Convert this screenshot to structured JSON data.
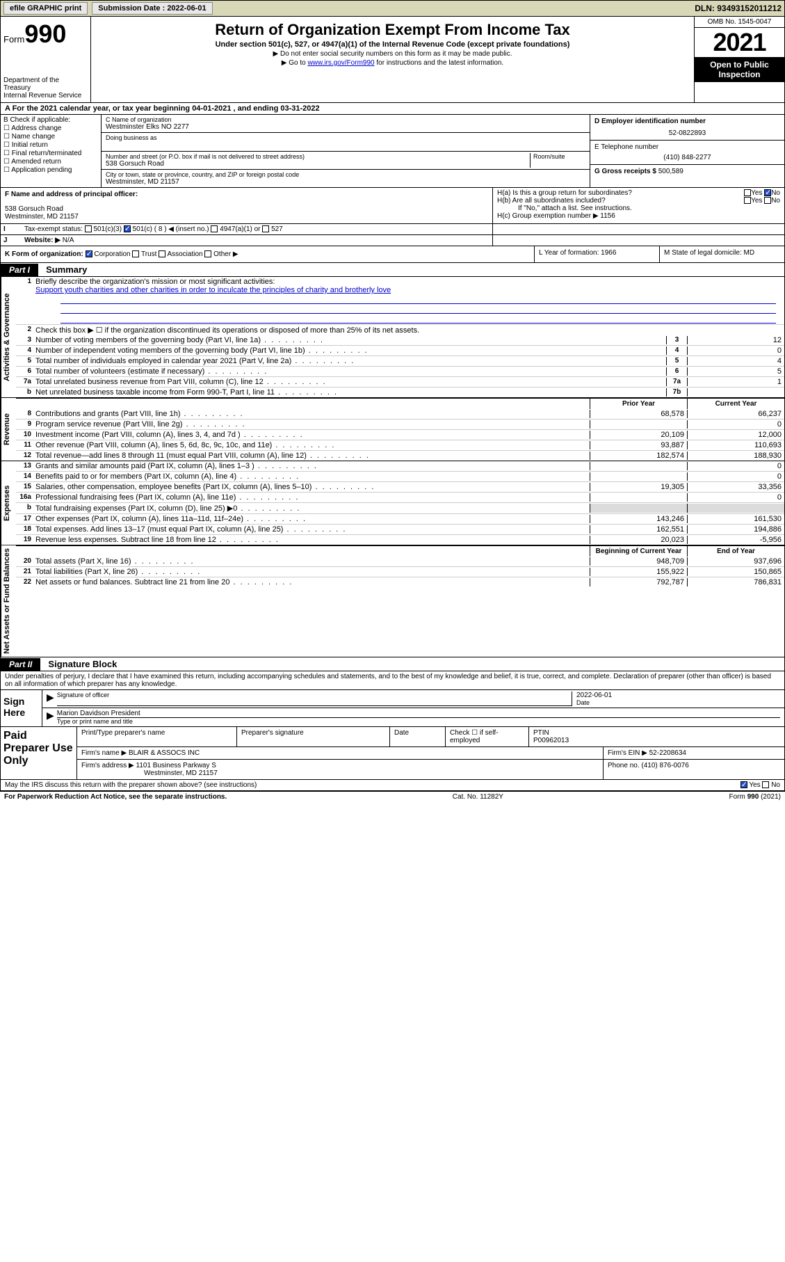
{
  "topbar": {
    "efile": "efile GRAPHIC print",
    "submission_label": "Submission Date : 2022-06-01",
    "dln": "DLN: 93493152011212"
  },
  "header": {
    "form_prefix": "Form",
    "form_number": "990",
    "dept": "Department of the Treasury",
    "irs": "Internal Revenue Service",
    "title": "Return of Organization Exempt From Income Tax",
    "sub": "Under section 501(c), 527, or 4947(a)(1) of the Internal Revenue Code (except private foundations)",
    "note1": "▶ Do not enter social security numbers on this form as it may be made public.",
    "note2_pre": "▶ Go to ",
    "note2_link": "www.irs.gov/Form990",
    "note2_post": " for instructions and the latest information.",
    "omb": "OMB No. 1545-0047",
    "year": "2021",
    "open_public": "Open to Public Inspection"
  },
  "taxyear": {
    "line": "A For the 2021 calendar year, or tax year beginning 04-01-2021  , and ending 03-31-2022"
  },
  "boxB": {
    "label": "B Check if applicable:",
    "opts": [
      "Address change",
      "Name change",
      "Initial return",
      "Final return/terminated",
      "Amended return",
      "Application pending"
    ]
  },
  "boxC": {
    "label_name": "C Name of organization",
    "org_name": "Westminster Elks NO 2277",
    "dba_label": "Doing business as",
    "addr_label": "Number and street (or P.O. box if mail is not delivered to street address)",
    "room_label": "Room/suite",
    "street": "538 Gorsuch Road",
    "city_label": "City or town, state or province, country, and ZIP or foreign postal code",
    "city": "Westminster, MD  21157"
  },
  "boxD": {
    "label": "D Employer identification number",
    "ein": "52-0822893"
  },
  "boxE": {
    "label": "E Telephone number",
    "phone": "(410) 848-2277"
  },
  "boxG": {
    "label": "G Gross receipts $",
    "amount": "500,589"
  },
  "boxF": {
    "label": "F  Name and address of principal officer:",
    "addr1": "538 Gorsuch Road",
    "addr2": "Westminster, MD  21157"
  },
  "boxH": {
    "ha": "H(a)  Is this a group return for subordinates?",
    "hb": "H(b)  Are all subordinates included?",
    "hb_note": "If \"No,\" attach a list. See instructions.",
    "hc": "H(c)  Group exemption number ▶  1156",
    "yes": "Yes",
    "no": "No"
  },
  "boxI": {
    "lab": "I",
    "text": "Tax-exempt status:",
    "o1": "501(c)(3)",
    "o2": "501(c) ( 8 ) ◀ (insert no.)",
    "o3": "4947(a)(1) or",
    "o4": "527"
  },
  "boxJ": {
    "lab": "J",
    "text": "Website: ▶",
    "val": "N/A"
  },
  "boxK": {
    "text": "K Form of organization:",
    "o1": "Corporation",
    "o2": "Trust",
    "o3": "Association",
    "o4": "Other ▶"
  },
  "boxL": {
    "text": "L Year of formation: 1966"
  },
  "boxM": {
    "text": "M State of legal domicile: MD"
  },
  "part1": {
    "label": "Part I",
    "title": "Summary",
    "line1_label": "1",
    "line1_text": "Briefly describe the organization's mission or most significant activities:",
    "mission": "Support youth charities and other charities in order to inculcate the principles of charity and brotherly love",
    "line2_text": "Check this box ▶ ☐  if the organization discontinued its operations or disposed of more than 25% of its net assets.",
    "prior_year": "Prior Year",
    "current_year": "Current Year",
    "begin_year": "Beginning of Current Year",
    "end_year": "End of Year"
  },
  "lines_gov": [
    {
      "n": "3",
      "t": "Number of voting members of the governing body (Part VI, line 1a)",
      "box": "3",
      "v2": "12"
    },
    {
      "n": "4",
      "t": "Number of independent voting members of the governing body (Part VI, line 1b)",
      "box": "4",
      "v2": "0"
    },
    {
      "n": "5",
      "t": "Total number of individuals employed in calendar year 2021 (Part V, line 2a)",
      "box": "5",
      "v2": "4"
    },
    {
      "n": "6",
      "t": "Total number of volunteers (estimate if necessary)",
      "box": "6",
      "v2": "5"
    },
    {
      "n": "7a",
      "t": "Total unrelated business revenue from Part VIII, column (C), line 12",
      "box": "7a",
      "v2": "1"
    },
    {
      "n": "b",
      "t": "Net unrelated business taxable income from Form 990-T, Part I, line 11",
      "box": "7b",
      "v2": ""
    }
  ],
  "lines_rev": [
    {
      "n": "8",
      "t": "Contributions and grants (Part VIII, line 1h)",
      "v1": "68,578",
      "v2": "66,237"
    },
    {
      "n": "9",
      "t": "Program service revenue (Part VIII, line 2g)",
      "v1": "",
      "v2": "0"
    },
    {
      "n": "10",
      "t": "Investment income (Part VIII, column (A), lines 3, 4, and 7d )",
      "v1": "20,109",
      "v2": "12,000"
    },
    {
      "n": "11",
      "t": "Other revenue (Part VIII, column (A), lines 5, 6d, 8c, 9c, 10c, and 11e)",
      "v1": "93,887",
      "v2": "110,693"
    },
    {
      "n": "12",
      "t": "Total revenue—add lines 8 through 11 (must equal Part VIII, column (A), line 12)",
      "v1": "182,574",
      "v2": "188,930"
    }
  ],
  "lines_exp": [
    {
      "n": "13",
      "t": "Grants and similar amounts paid (Part IX, column (A), lines 1–3 )",
      "v1": "",
      "v2": "0"
    },
    {
      "n": "14",
      "t": "Benefits paid to or for members (Part IX, column (A), line 4)",
      "v1": "",
      "v2": "0"
    },
    {
      "n": "15",
      "t": "Salaries, other compensation, employee benefits (Part IX, column (A), lines 5–10)",
      "v1": "19,305",
      "v2": "33,356"
    },
    {
      "n": "16a",
      "t": "Professional fundraising fees (Part IX, column (A), line 11e)",
      "v1": "",
      "v2": "0"
    },
    {
      "n": "b",
      "t": "Total fundraising expenses (Part IX, column (D), line 25) ▶0",
      "v1": "",
      "v2": "",
      "shaded": true
    },
    {
      "n": "17",
      "t": "Other expenses (Part IX, column (A), lines 11a–11d, 11f–24e)",
      "v1": "143,246",
      "v2": "161,530"
    },
    {
      "n": "18",
      "t": "Total expenses. Add lines 13–17 (must equal Part IX, column (A), line 25)",
      "v1": "162,551",
      "v2": "194,886"
    },
    {
      "n": "19",
      "t": "Revenue less expenses. Subtract line 18 from line 12",
      "v1": "20,023",
      "v2": "-5,956"
    }
  ],
  "lines_net": [
    {
      "n": "20",
      "t": "Total assets (Part X, line 16)",
      "v1": "948,709",
      "v2": "937,696"
    },
    {
      "n": "21",
      "t": "Total liabilities (Part X, line 26)",
      "v1": "155,922",
      "v2": "150,865"
    },
    {
      "n": "22",
      "t": "Net assets or fund balances. Subtract line 21 from line 20",
      "v1": "792,787",
      "v2": "786,831"
    }
  ],
  "part2": {
    "label": "Part II",
    "title": "Signature Block",
    "penalty": "Under penalties of perjury, I declare that I have examined this return, including accompanying schedules and statements, and to the best of my knowledge and belief, it is true, correct, and complete. Declaration of preparer (other than officer) is based on all information of which preparer has any knowledge."
  },
  "sign": {
    "left": "Sign Here",
    "sig_label": "Signature of officer",
    "date_label": "Date",
    "date_val": "2022-06-01",
    "name_val": "Marion Davidson  President",
    "name_label": "Type or print name and title"
  },
  "paid": {
    "left": "Paid Preparer Use Only",
    "h1": "Print/Type preparer's name",
    "h2": "Preparer's signature",
    "h3": "Date",
    "h4a": "Check ☐ if self-employed",
    "h4b": "PTIN",
    "ptin": "P00962013",
    "firm_name_lab": "Firm's name    ▶",
    "firm_name": "BLAIR & ASSOCS INC",
    "firm_ein_lab": "Firm's EIN ▶",
    "firm_ein": "52-2208634",
    "firm_addr_lab": "Firm's address ▶",
    "firm_addr1": "1101 Business Parkway S",
    "firm_addr2": "Westminster, MD  21157",
    "phone_lab": "Phone no.",
    "phone": "(410) 876-0076"
  },
  "footer": {
    "q": "May the IRS discuss this return with the preparer shown above? (see instructions)",
    "yes": "Yes",
    "no": "No",
    "paperwork": "For Paperwork Reduction Act Notice, see the separate instructions.",
    "cat": "Cat. No. 11282Y",
    "form": "Form 990 (2021)"
  },
  "vtabs": {
    "gov": "Activities & Governance",
    "rev": "Revenue",
    "exp": "Expenses",
    "net": "Net Assets or Fund Balances"
  }
}
